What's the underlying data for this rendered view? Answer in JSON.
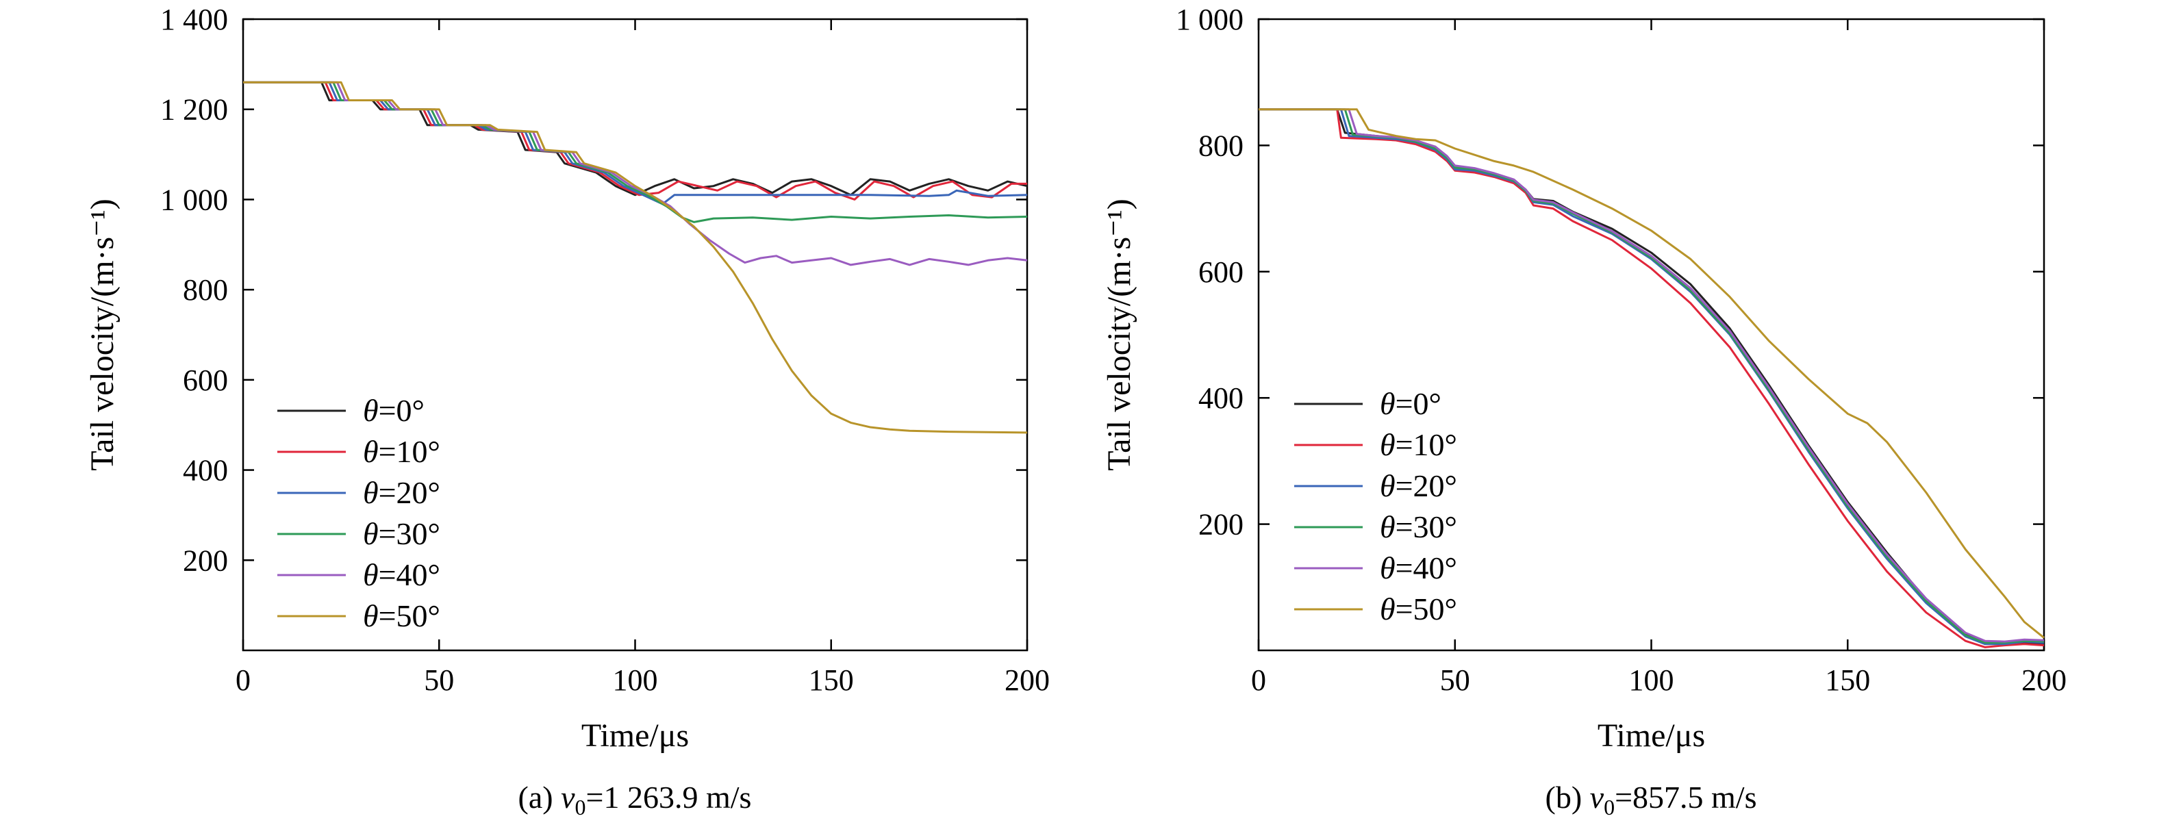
{
  "chart_data": [
    {
      "type": "line",
      "xlabel": "Time/μs",
      "ylabel": "Tail velocity/(m·s⁻¹)",
      "xlim": [
        0,
        200
      ],
      "ylim": [
        0,
        1400
      ],
      "xticks": [
        0,
        50,
        100,
        150,
        200
      ],
      "xtick_labels": [
        "0",
        "50",
        "100",
        "150",
        "200"
      ],
      "yticks": [
        200,
        400,
        600,
        800,
        1000,
        1200,
        1400
      ],
      "ytick_labels": [
        "200",
        "400",
        "600",
        "800",
        "1 000",
        "1 200",
        "1 400"
      ],
      "caption": {
        "prefix": "(a) ",
        "var": "v",
        "sub": "0",
        "rest": "=1 263.9 m/s"
      },
      "legend_position": "lower-left",
      "series": [
        {
          "name": "θ=0°",
          "color": "#222222",
          "x": [
            0,
            20,
            22,
            33,
            35,
            45,
            47,
            58,
            60,
            70,
            72,
            80,
            82,
            90,
            95,
            100,
            105,
            110,
            115,
            120,
            125,
            130,
            135,
            140,
            145,
            150,
            155,
            160,
            165,
            170,
            175,
            180,
            185,
            190,
            195,
            200
          ],
          "y": [
            1260,
            1260,
            1220,
            1220,
            1200,
            1200,
            1165,
            1165,
            1155,
            1150,
            1110,
            1105,
            1080,
            1060,
            1030,
            1010,
            1030,
            1045,
            1025,
            1030,
            1045,
            1035,
            1015,
            1040,
            1045,
            1030,
            1010,
            1045,
            1040,
            1020,
            1035,
            1045,
            1030,
            1020,
            1040,
            1030
          ]
        },
        {
          "name": "θ=10°",
          "color": "#e0263a",
          "x": [
            0,
            21,
            23,
            34,
            36,
            46,
            48,
            59,
            61,
            71,
            73,
            81,
            83,
            91,
            96,
            101,
            106,
            111,
            116,
            121,
            126,
            131,
            136,
            141,
            146,
            151,
            156,
            161,
            166,
            171,
            176,
            181,
            186,
            191,
            196,
            200
          ],
          "y": [
            1260,
            1260,
            1220,
            1220,
            1200,
            1200,
            1165,
            1165,
            1155,
            1150,
            1110,
            1105,
            1080,
            1060,
            1030,
            1010,
            1015,
            1040,
            1030,
            1020,
            1040,
            1030,
            1005,
            1030,
            1040,
            1015,
            1000,
            1040,
            1030,
            1005,
            1030,
            1040,
            1010,
            1005,
            1035,
            1035
          ]
        },
        {
          "name": "θ=20°",
          "color": "#3a66b8",
          "x": [
            0,
            22,
            24,
            35,
            37,
            47,
            49,
            60,
            62,
            72,
            74,
            82,
            84,
            92,
            97,
            102,
            107,
            110,
            125,
            160,
            175,
            180,
            182,
            190,
            200
          ],
          "y": [
            1260,
            1260,
            1220,
            1220,
            1200,
            1200,
            1165,
            1165,
            1155,
            1150,
            1110,
            1105,
            1080,
            1060,
            1030,
            1010,
            990,
            1010,
            1010,
            1010,
            1008,
            1010,
            1020,
            1008,
            1010
          ]
        },
        {
          "name": "θ=30°",
          "color": "#2e9a57",
          "x": [
            0,
            23,
            25,
            36,
            38,
            48,
            50,
            61,
            63,
            73,
            75,
            83,
            85,
            93,
            98,
            103,
            108,
            112,
            115,
            120,
            130,
            140,
            150,
            160,
            170,
            180,
            190,
            200
          ],
          "y": [
            1260,
            1260,
            1220,
            1220,
            1200,
            1200,
            1165,
            1165,
            1155,
            1150,
            1110,
            1105,
            1080,
            1060,
            1030,
            1010,
            985,
            960,
            950,
            958,
            960,
            955,
            962,
            958,
            962,
            965,
            960,
            962
          ]
        },
        {
          "name": "θ=40°",
          "color": "#9a5cc0",
          "x": [
            0,
            24,
            26,
            37,
            39,
            49,
            51,
            62,
            64,
            74,
            76,
            84,
            86,
            94,
            99,
            104,
            109,
            114,
            119,
            124,
            128,
            132,
            136,
            140,
            145,
            150,
            155,
            160,
            165,
            170,
            175,
            180,
            185,
            190,
            195,
            200
          ],
          "y": [
            1260,
            1260,
            1220,
            1220,
            1200,
            1200,
            1165,
            1165,
            1155,
            1150,
            1110,
            1105,
            1080,
            1060,
            1030,
            1010,
            985,
            945,
            910,
            880,
            860,
            870,
            875,
            860,
            865,
            870,
            855,
            862,
            868,
            855,
            868,
            862,
            855,
            865,
            870,
            865
          ]
        },
        {
          "name": "θ=50°",
          "color": "#b8942a",
          "x": [
            0,
            25,
            27,
            38,
            40,
            50,
            52,
            63,
            65,
            75,
            77,
            85,
            87,
            95,
            100,
            105,
            110,
            115,
            120,
            125,
            130,
            135,
            140,
            145,
            150,
            155,
            160,
            165,
            170,
            180,
            190,
            200
          ],
          "y": [
            1260,
            1260,
            1220,
            1220,
            1200,
            1200,
            1165,
            1165,
            1155,
            1150,
            1110,
            1105,
            1080,
            1060,
            1030,
            1005,
            975,
            940,
            895,
            840,
            770,
            690,
            620,
            565,
            525,
            505,
            495,
            490,
            487,
            485,
            484,
            483
          ]
        }
      ]
    },
    {
      "type": "line",
      "xlabel": "Time/μs",
      "ylabel": "Tail velocity/(m·s⁻¹)",
      "xlim": [
        0,
        200
      ],
      "ylim": [
        0,
        1000
      ],
      "xticks": [
        0,
        50,
        100,
        150,
        200
      ],
      "xtick_labels": [
        "0",
        "50",
        "100",
        "150",
        "200"
      ],
      "yticks": [
        200,
        400,
        600,
        800,
        1000
      ],
      "ytick_labels": [
        "200",
        "400",
        "600",
        "800",
        "1 000"
      ],
      "caption": {
        "prefix": "(b) ",
        "var": "v",
        "sub": "0",
        "rest": "=857.5 m/s"
      },
      "legend_position": "lower-left",
      "series": [
        {
          "name": "θ=0°",
          "color": "#222222",
          "x": [
            0,
            20,
            22,
            30,
            35,
            40,
            45,
            48,
            50,
            55,
            60,
            65,
            68,
            70,
            75,
            80,
            90,
            100,
            110,
            120,
            130,
            140,
            150,
            160,
            170,
            180,
            185,
            190,
            195,
            200
          ],
          "y": [
            857,
            857,
            820,
            815,
            812,
            805,
            795,
            780,
            765,
            762,
            755,
            745,
            730,
            715,
            712,
            695,
            668,
            630,
            580,
            510,
            420,
            325,
            235,
            155,
            80,
            25,
            12,
            10,
            12,
            10
          ]
        },
        {
          "name": "θ=10°",
          "color": "#e0263a",
          "x": [
            0,
            20,
            21,
            30,
            35,
            40,
            45,
            48,
            50,
            55,
            60,
            65,
            68,
            70,
            75,
            80,
            90,
            100,
            110,
            120,
            130,
            140,
            150,
            160,
            170,
            180,
            185,
            190,
            195,
            200
          ],
          "y": [
            857,
            857,
            812,
            810,
            808,
            802,
            790,
            775,
            760,
            757,
            750,
            740,
            725,
            705,
            700,
            680,
            650,
            605,
            550,
            480,
            390,
            295,
            205,
            125,
            60,
            15,
            5,
            8,
            10,
            8
          ]
        },
        {
          "name": "θ=20°",
          "color": "#3a66b8",
          "x": [
            0,
            21,
            23,
            30,
            35,
            40,
            45,
            48,
            50,
            55,
            60,
            65,
            68,
            70,
            75,
            80,
            90,
            100,
            110,
            120,
            130,
            140,
            150,
            160,
            170,
            180,
            185,
            190,
            195,
            200
          ],
          "y": [
            857,
            857,
            815,
            812,
            810,
            805,
            793,
            778,
            762,
            760,
            752,
            743,
            728,
            710,
            706,
            688,
            660,
            620,
            568,
            500,
            410,
            315,
            225,
            145,
            75,
            22,
            10,
            10,
            14,
            12
          ]
        },
        {
          "name": "θ=30°",
          "color": "#2e9a57",
          "x": [
            0,
            22,
            24,
            30,
            35,
            40,
            45,
            48,
            50,
            55,
            60,
            65,
            68,
            70,
            75,
            80,
            90,
            100,
            110,
            120,
            130,
            140,
            150,
            160,
            170,
            180,
            185,
            190,
            195,
            200
          ],
          "y": [
            857,
            857,
            817,
            814,
            812,
            806,
            795,
            780,
            765,
            762,
            754,
            744,
            728,
            712,
            708,
            692,
            662,
            622,
            570,
            502,
            412,
            318,
            228,
            148,
            78,
            24,
            12,
            12,
            15,
            14
          ]
        },
        {
          "name": "θ=40°",
          "color": "#9a5cc0",
          "x": [
            0,
            23,
            25,
            30,
            35,
            40,
            45,
            48,
            50,
            55,
            60,
            65,
            68,
            70,
            75,
            80,
            90,
            100,
            110,
            120,
            130,
            140,
            150,
            160,
            170,
            180,
            185,
            190,
            195,
            200
          ],
          "y": [
            857,
            857,
            818,
            815,
            813,
            808,
            798,
            783,
            768,
            764,
            756,
            746,
            730,
            714,
            710,
            694,
            664,
            625,
            574,
            506,
            416,
            322,
            232,
            152,
            82,
            28,
            15,
            14,
            17,
            16
          ]
        },
        {
          "name": "θ=50°",
          "color": "#b8942a",
          "x": [
            0,
            25,
            28,
            30,
            35,
            40,
            45,
            50,
            55,
            60,
            65,
            70,
            80,
            90,
            100,
            110,
            120,
            130,
            140,
            150,
            155,
            160,
            170,
            180,
            190,
            195,
            200
          ],
          "y": [
            857,
            857,
            825,
            822,
            815,
            810,
            808,
            795,
            785,
            775,
            768,
            758,
            730,
            700,
            665,
            620,
            560,
            490,
            430,
            375,
            360,
            330,
            250,
            160,
            85,
            45,
            20
          ]
        }
      ]
    }
  ]
}
